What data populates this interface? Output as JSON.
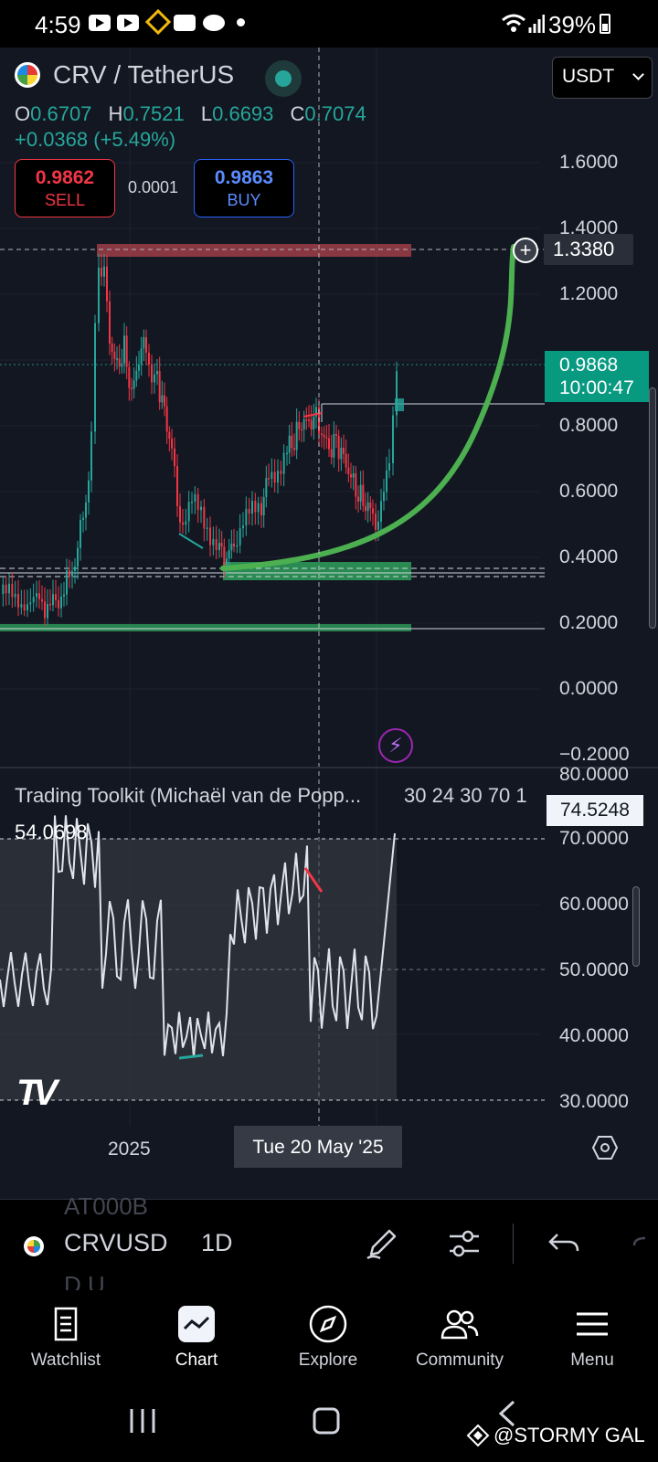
{
  "status_bar": {
    "time": "4:59",
    "battery": "39%"
  },
  "header": {
    "symbol": "CRV / TetherUS",
    "currency": "USDT",
    "ohlc": {
      "o_label": "O",
      "o": "0.6707",
      "h_label": "H",
      "h": "0.7521",
      "l_label": "L",
      "l": "0.6693",
      "c_label": "C",
      "c": "0.7074"
    },
    "change": "+0.0368 (+5.49%)"
  },
  "trade": {
    "sell_price": "0.9862",
    "sell_label": "SELL",
    "spread": "0.0001",
    "buy_price": "0.9863",
    "buy_label": "BUY"
  },
  "price_axis": {
    "labels": [
      "1.6000",
      "1.4000",
      "1.2000",
      "0.8000",
      "0.6000",
      "0.4000",
      "0.2000",
      "0.0000",
      "−0.2000"
    ],
    "horizontal_line_value": "1.3380",
    "current_price": "0.9868",
    "countdown": "10:00:47"
  },
  "indicator": {
    "title": "Trading Toolkit (Michaël van de Popp...",
    "params": "30 24 30 70 1",
    "value": "54.0698",
    "current": "74.5248",
    "axis_labels": [
      "80.0000",
      "70.0000",
      "60.0000",
      "50.0000",
      "40.0000",
      "30.0000"
    ]
  },
  "time_axis": {
    "year": "2025",
    "crosshair_date": "Tue 20 May '25"
  },
  "toolbar": {
    "ghost_top": "AT000B",
    "symbol": "CRVUSD",
    "ghost_bottom": "D.U",
    "interval": "1D"
  },
  "nav": {
    "watchlist": "Watchlist",
    "chart": "Chart",
    "explore": "Explore",
    "community": "Community",
    "menu": "Menu"
  },
  "watermark": "@STORMY GAL",
  "colors": {
    "up": "#26a69a",
    "down": "#f23645",
    "background": "#131722",
    "curve": "#4caf50",
    "resistance": "#b2444d",
    "support": "#2ea05a"
  }
}
